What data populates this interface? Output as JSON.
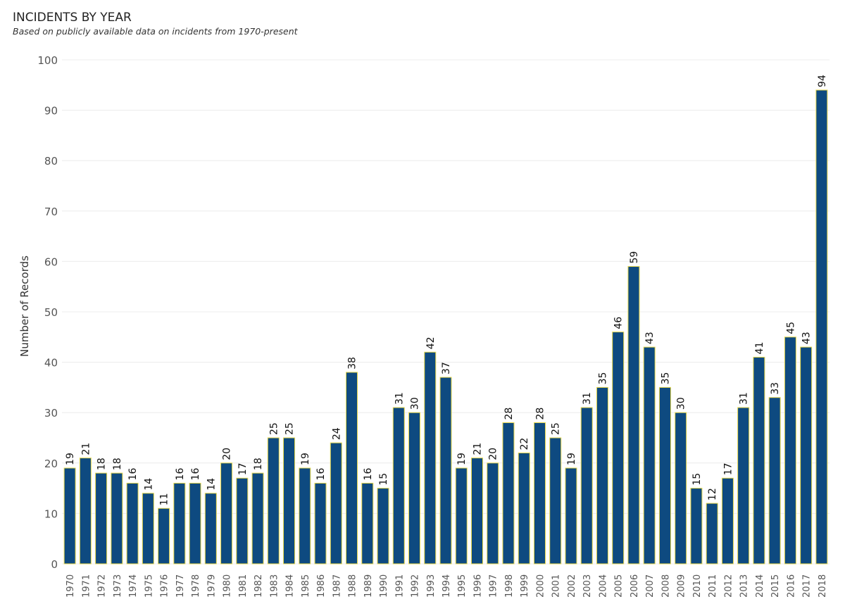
{
  "title": "INCIDENTS BY YEAR",
  "subtitle": "Based on publicly available data on incidents from 1970-present",
  "colors": {
    "bar_fill": "#0e4a80",
    "bar_stroke": "#e8d84a",
    "gridline": "#ececec",
    "axis_text": "#555555"
  },
  "chart_data": {
    "type": "bar",
    "title": "INCIDENTS BY YEAR",
    "subtitle": "Based on publicly available data on incidents from 1970-present",
    "xlabel": "",
    "ylabel": "Number of Records",
    "ylim": [
      0,
      100
    ],
    "yticks": [
      0,
      10,
      20,
      30,
      40,
      50,
      60,
      70,
      80,
      90,
      100
    ],
    "grid": true,
    "legend": "none",
    "categories": [
      "1970",
      "1971",
      "1972",
      "1973",
      "1974",
      "1975",
      "1976",
      "1977",
      "1978",
      "1979",
      "1980",
      "1981",
      "1982",
      "1983",
      "1984",
      "1985",
      "1986",
      "1987",
      "1988",
      "1989",
      "1990",
      "1991",
      "1992",
      "1993",
      "1994",
      "1995",
      "1996",
      "1997",
      "1998",
      "1999",
      "2000",
      "2001",
      "2002",
      "2003",
      "2004",
      "2005",
      "2006",
      "2007",
      "2008",
      "2009",
      "2010",
      "2011",
      "2012",
      "2013",
      "2014",
      "2015",
      "2016",
      "2017",
      "2018"
    ],
    "values": [
      19,
      21,
      18,
      18,
      16,
      14,
      11,
      16,
      16,
      14,
      20,
      17,
      18,
      25,
      25,
      19,
      16,
      24,
      38,
      16,
      15,
      31,
      30,
      42,
      37,
      19,
      21,
      20,
      28,
      22,
      28,
      25,
      19,
      31,
      35,
      46,
      59,
      43,
      35,
      30,
      15,
      12,
      17,
      31,
      41,
      33,
      45,
      43,
      94
    ]
  }
}
